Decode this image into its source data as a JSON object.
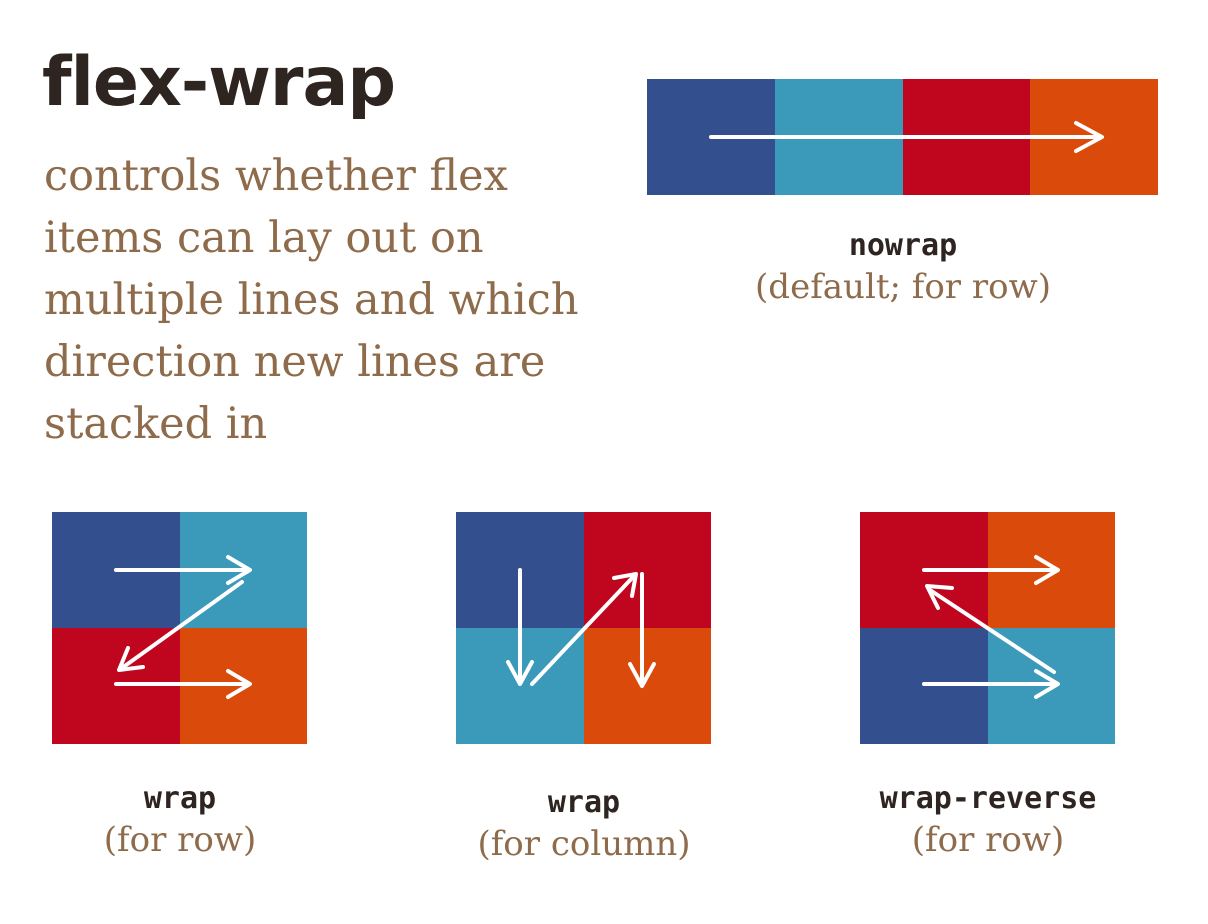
{
  "title": "flex-wrap",
  "description_lines": [
    "controls whether flex",
    "items can lay out on",
    "multiple lines and which",
    "direction new lines are",
    "stacked in"
  ],
  "colors": {
    "navy": "#344f8d",
    "teal": "#3b9ab9",
    "red": "#c0061e",
    "orange": "#da4b0b",
    "arrow": "#ffffff",
    "title_text": "#2e2420",
    "body_text": "#8e6b4b"
  },
  "examples": {
    "nowrap": {
      "keyword": "nowrap",
      "note": "(default; for row)",
      "item_colors": [
        "navy",
        "teal",
        "red",
        "orange"
      ]
    },
    "wrap_row": {
      "keyword": "wrap",
      "note": "(for row)",
      "item_colors": [
        "navy",
        "teal",
        "red",
        "orange"
      ]
    },
    "wrap_column": {
      "keyword": "wrap",
      "note": "(for column)",
      "item_colors": [
        "navy",
        "red",
        "teal",
        "orange"
      ]
    },
    "wrap_reverse": {
      "keyword": "wrap-reverse",
      "note": "(for row)",
      "item_colors": [
        "red",
        "orange",
        "navy",
        "teal"
      ]
    }
  }
}
